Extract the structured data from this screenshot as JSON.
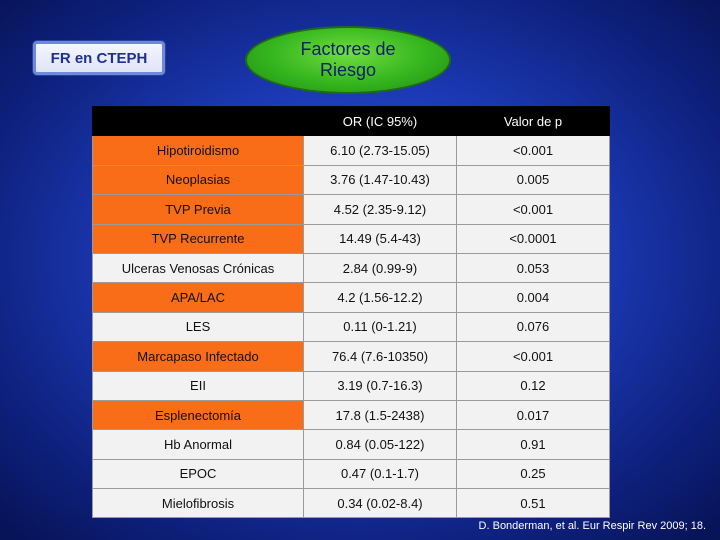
{
  "badge": {
    "label": "FR en CTEPH"
  },
  "title": {
    "text": "Factores de\nRiesgo"
  },
  "table": {
    "headers": [
      "",
      "OR (IC 95%)",
      "Valor de p"
    ],
    "rows": [
      {
        "factor": "Hipotiroidismo",
        "or": "6.10 (2.73-15.05)",
        "p": "<0.001",
        "highlight": true
      },
      {
        "factor": "Neoplasias",
        "or": "3.76 (1.47-10.43)",
        "p": "0.005",
        "highlight": true
      },
      {
        "factor": "TVP Previa",
        "or": "4.52 (2.35-9.12)",
        "p": "<0.001",
        "highlight": true
      },
      {
        "factor": "TVP Recurrente",
        "or": "14.49 (5.4-43)",
        "p": "<0.0001",
        "highlight": true
      },
      {
        "factor": "Ulceras Venosas Crónicas",
        "or": "2.84 (0.99-9)",
        "p": "0.053",
        "highlight": false
      },
      {
        "factor": "APA/LAC",
        "or": "4.2 (1.56-12.2)",
        "p": "0.004",
        "highlight": true
      },
      {
        "factor": "LES",
        "or": "0.11 (0-1.21)",
        "p": "0.076",
        "highlight": false
      },
      {
        "factor": "Marcapaso Infectado",
        "or": "76.4 (7.6-10350)",
        "p": "<0.001",
        "highlight": true
      },
      {
        "factor": "EII",
        "or": "3.19 (0.7-16.3)",
        "p": "0.12",
        "highlight": false
      },
      {
        "factor": "Esplenectomía",
        "or": "17.8 (1.5-2438)",
        "p": "0.017",
        "highlight": true
      },
      {
        "factor": "Hb Anormal",
        "or": "0.84 (0.05-122)",
        "p": "0.91",
        "highlight": false
      },
      {
        "factor": "EPOC",
        "or": "0.47 (0.1-1.7)",
        "p": "0.25",
        "highlight": false
      },
      {
        "factor": "Mielofibrosis",
        "or": "0.34 (0.02-8.4)",
        "p": "0.51",
        "highlight": false
      }
    ]
  },
  "citation": {
    "text": "D. Bonderman, et al. Eur Respir Rev 2009; 18."
  },
  "colors": {
    "highlight": "#f96d18",
    "cell": "#f2f2f2",
    "header": "#000000",
    "title_ellipse": "#35b51e"
  }
}
